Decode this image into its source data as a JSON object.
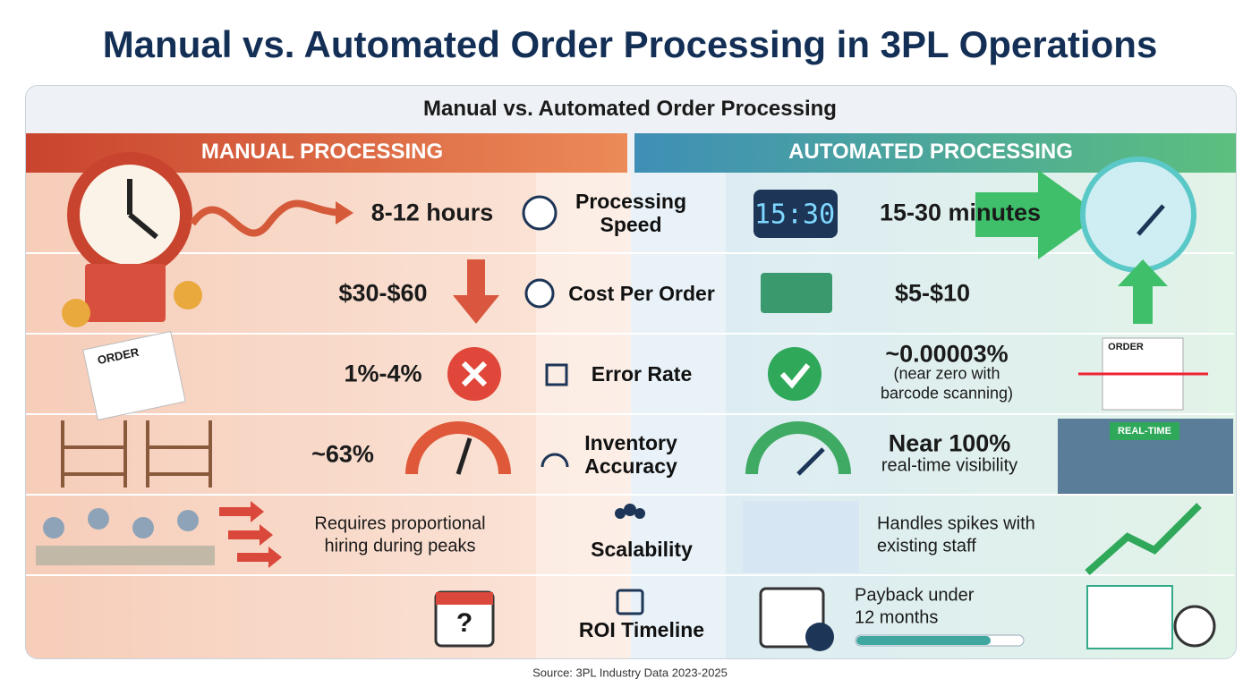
{
  "title": "Manual vs. Automated Order Processing in 3PL Operations",
  "panel_title": "Manual vs. Automated Order Processing",
  "columns": {
    "manual": "MANUAL PROCESSING",
    "automated": "AUTOMATED PROCESSING"
  },
  "rows": [
    {
      "label": "Processing Speed",
      "manual": [
        "8-12 hours"
      ],
      "automated": [
        "15-30 minutes"
      ]
    },
    {
      "label": "Cost Per Order",
      "manual": [
        "$30-$60"
      ],
      "automated": [
        "$5-$10"
      ]
    },
    {
      "label": "Error Rate",
      "manual": [
        "1%-4%"
      ],
      "automated": [
        "~0.00003%",
        "(near zero with",
        "barcode scanning)"
      ]
    },
    {
      "label": "Inventory Accuracy",
      "manual": [
        "~63%"
      ],
      "automated": [
        "Near 100%",
        "real-time visibility"
      ]
    },
    {
      "label": "Scalability",
      "manual": [
        "Requires proportional",
        "hiring during peaks"
      ],
      "automated": [
        "Handles spikes with",
        "existing staff"
      ]
    },
    {
      "label": "ROI Timeline",
      "automated": [
        "Payback under",
        "12 months"
      ]
    }
  ],
  "icon_texts": {
    "clock": "15:30",
    "order_manual": "ORDER",
    "order_auto": "ORDER",
    "realtime": "REAL-TIME",
    "question": "?"
  },
  "source": "Source: 3PL Industry Data 2023-2025"
}
